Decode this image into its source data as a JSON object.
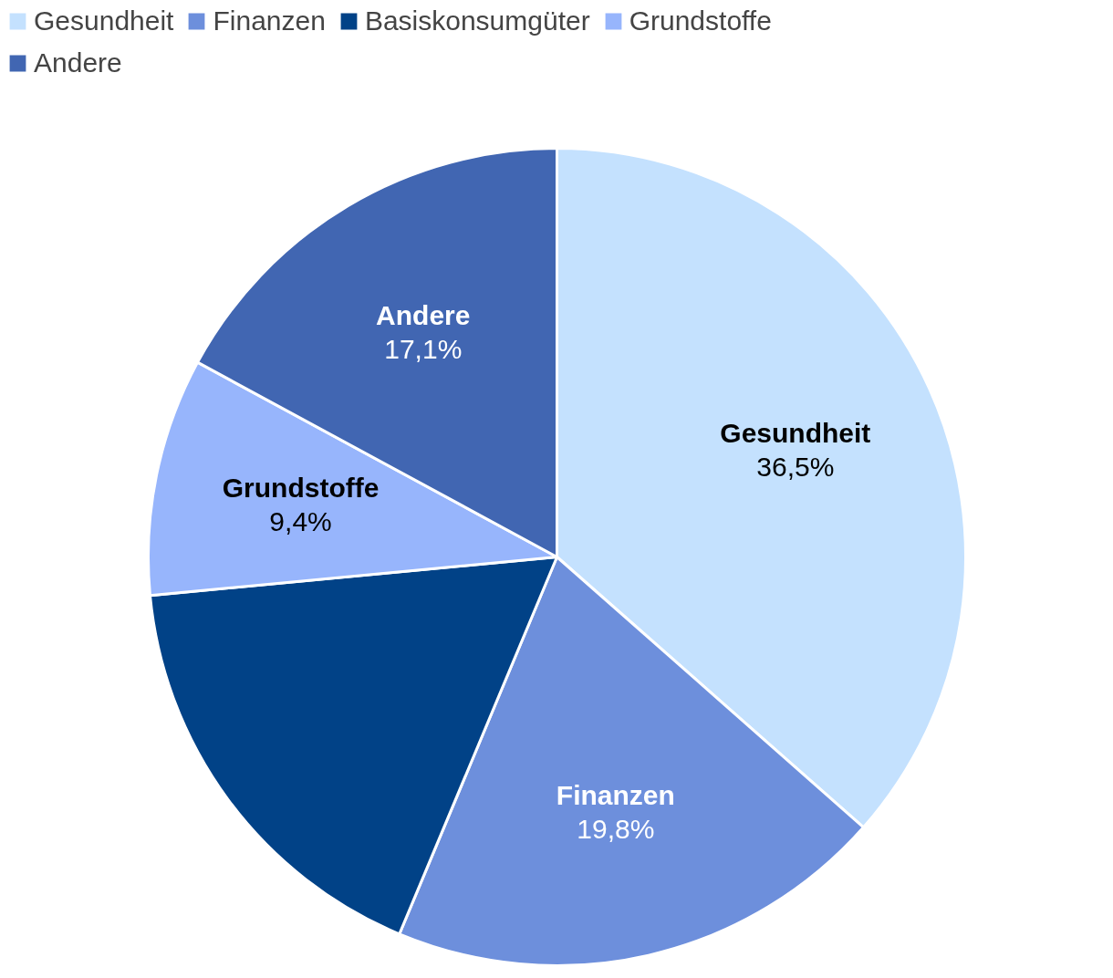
{
  "chart_data": {
    "type": "pie",
    "categories": [
      "Gesundheit",
      "Finanzen",
      "Basiskonsumgüter",
      "Grundstoffe",
      "Andere"
    ],
    "values": [
      36.5,
      19.8,
      17.2,
      9.4,
      17.1
    ],
    "colors": [
      "#c4e1fe",
      "#6d8fdc",
      "#014287",
      "#97b5fc",
      "#4166b2"
    ],
    "value_labels": [
      "36,5%",
      "19,8%",
      null,
      "9,4%",
      "17,1%"
    ],
    "legend": "top left"
  }
}
